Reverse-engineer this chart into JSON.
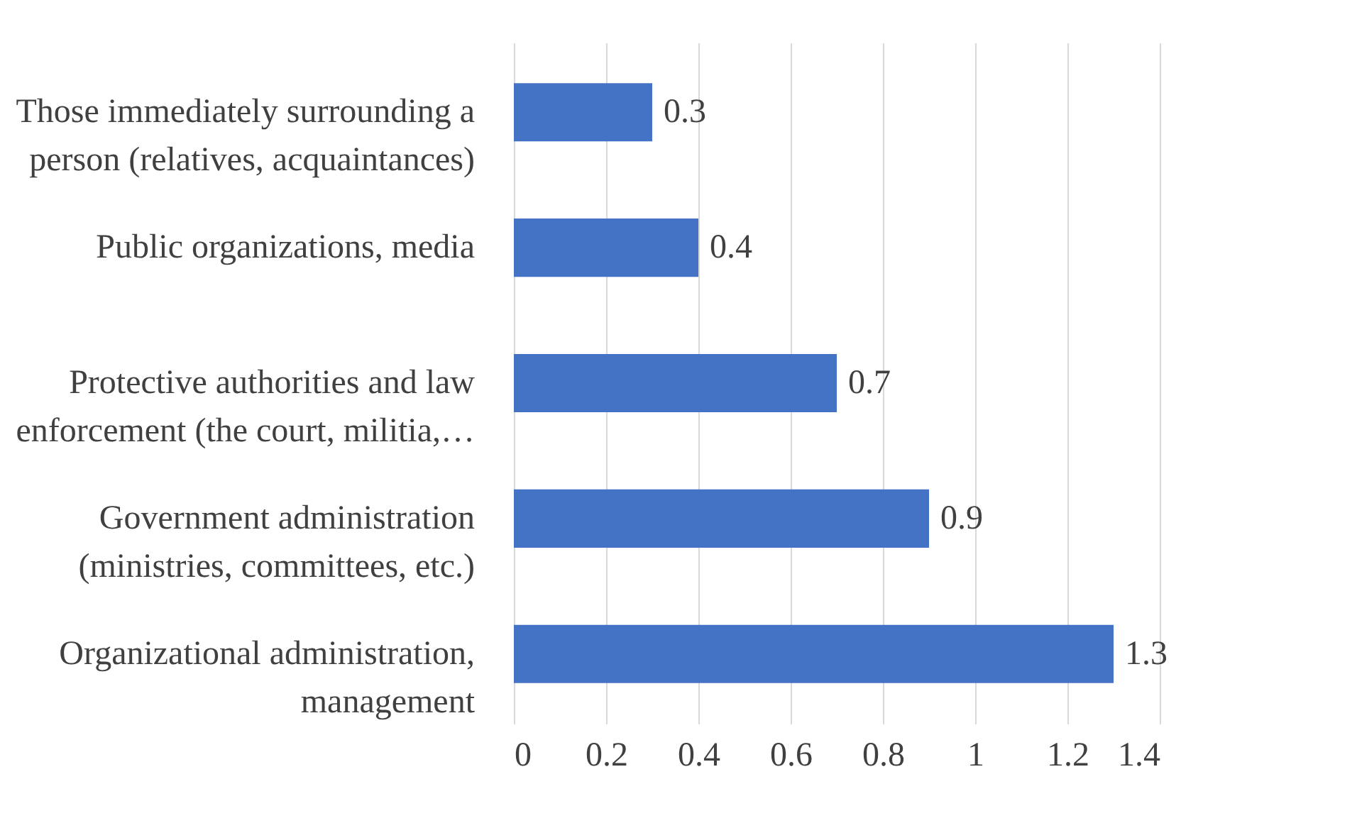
{
  "chart_data": {
    "type": "bar",
    "orientation": "horizontal",
    "categories": [
      "Those immediately surrounding a person (relatives, acquaintances)",
      "Public organizations, media",
      "Protective authorities and law enforcement (the court, militia,…",
      "Government administration (ministries, committees, etc.)",
      "Organizational administration, management"
    ],
    "values": [
      0.3,
      0.4,
      0.7,
      0.9,
      1.3
    ],
    "color": "#4472c4",
    "xlim": [
      0,
      1.4
    ],
    "xticks": [
      0,
      0.2,
      0.4,
      0.6,
      0.8,
      1,
      1.2,
      1.4
    ],
    "grid": "x",
    "data_labels": true
  }
}
